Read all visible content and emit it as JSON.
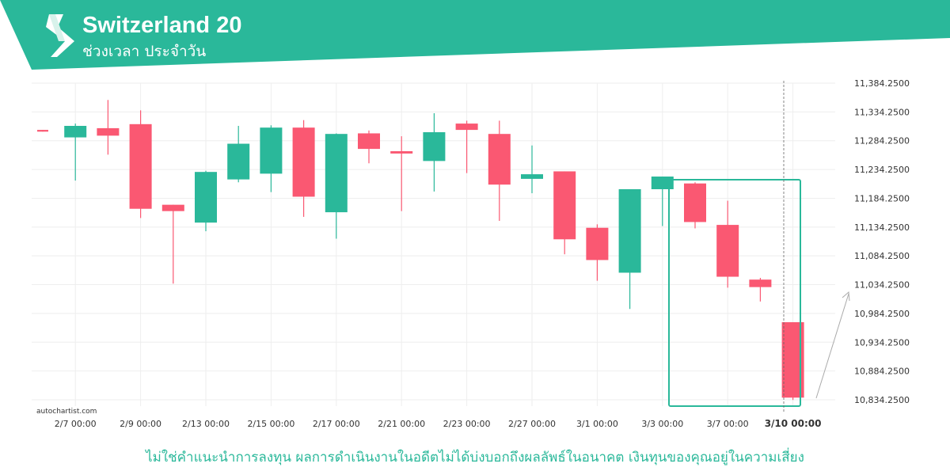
{
  "header": {
    "title": "Switzerland 20",
    "subtitle": "ช่วงเวลา ประจำวัน",
    "brand_color": "#2ab89a"
  },
  "watermark": "autochartist.com",
  "disclaimer": "ไม่ใช่คำแนะนำการลงทุน ผลการดำเนินงานในอดีตไม่ได้บ่งบอกถึงผลลัพธ์ในอนาคต เงินทุนของคุณอยู่ในความเสี่ยง",
  "colors": {
    "up": "#2ab89a",
    "down": "#fa5872",
    "grid": "#eeeeee",
    "pattern_box": "#2ab89a",
    "disclaimer": "#2ab89a"
  },
  "chart_data": {
    "type": "candlestick",
    "ylim": [
      10834.25,
      11384.25
    ],
    "y_ticks": [
      "11,384.2500",
      "11,334.2500",
      "11,284.2500",
      "11,234.2500",
      "11,184.2500",
      "11,134.2500",
      "11,084.2500",
      "11,034.2500",
      "10,984.2500",
      "10,934.2500",
      "10,884.2500",
      "10,834.2500"
    ],
    "x_tick_labels": [
      "2/7 00:00",
      "2/9 00:00",
      "2/13 00:00",
      "2/15 00:00",
      "2/17 00:00",
      "2/21 00:00",
      "2/23 00:00",
      "2/27 00:00",
      "3/1 00:00",
      "3/3 00:00",
      "3/7 00:00",
      "3/10 00:00"
    ],
    "candles": [
      {
        "o": 11303,
        "h": 11303,
        "l": 11300,
        "c": 11300
      },
      {
        "o": 11290,
        "h": 11314,
        "l": 11215,
        "c": 11310
      },
      {
        "o": 11306,
        "h": 11355,
        "l": 11260,
        "c": 11293
      },
      {
        "o": 11313,
        "h": 11337,
        "l": 11150,
        "c": 11166
      },
      {
        "o": 11173,
        "h": 11173,
        "l": 11036,
        "c": 11162
      },
      {
        "o": 11142,
        "h": 11232,
        "l": 11127,
        "c": 11230
      },
      {
        "o": 11217,
        "h": 11310,
        "l": 11212,
        "c": 11279
      },
      {
        "o": 11227,
        "h": 11311,
        "l": 11195,
        "c": 11307
      },
      {
        "o": 11307,
        "h": 11320,
        "l": 11152,
        "c": 11187
      },
      {
        "o": 11160,
        "h": 11297,
        "l": 11114,
        "c": 11296
      },
      {
        "o": 11297,
        "h": 11302,
        "l": 11245,
        "c": 11270
      },
      {
        "o": 11266,
        "h": 11292,
        "l": 11162,
        "c": 11262
      },
      {
        "o": 11249,
        "h": 11332,
        "l": 11196,
        "c": 11299
      },
      {
        "o": 11314,
        "h": 11319,
        "l": 11228,
        "c": 11303
      },
      {
        "o": 11296,
        "h": 11319,
        "l": 11145,
        "c": 11208
      },
      {
        "o": 11218,
        "h": 11276,
        "l": 11193,
        "c": 11226
      },
      {
        "o": 11231,
        "h": 11231,
        "l": 11087,
        "c": 11113
      },
      {
        "o": 11133,
        "h": 11139,
        "l": 11041,
        "c": 11077
      },
      {
        "o": 11055,
        "h": 11200,
        "l": 10992,
        "c": 11200
      },
      {
        "o": 11200,
        "h": 11222,
        "l": 11136,
        "c": 11222
      },
      {
        "o": 11210,
        "h": 11212,
        "l": 11132,
        "c": 11143
      },
      {
        "o": 11138,
        "h": 11180,
        "l": 11029,
        "c": 11048
      },
      {
        "o": 11043,
        "h": 11046,
        "l": 11005,
        "c": 11030
      },
      {
        "o": 10969,
        "h": 10969,
        "l": 10834,
        "c": 10838
      }
    ],
    "grid": true
  }
}
